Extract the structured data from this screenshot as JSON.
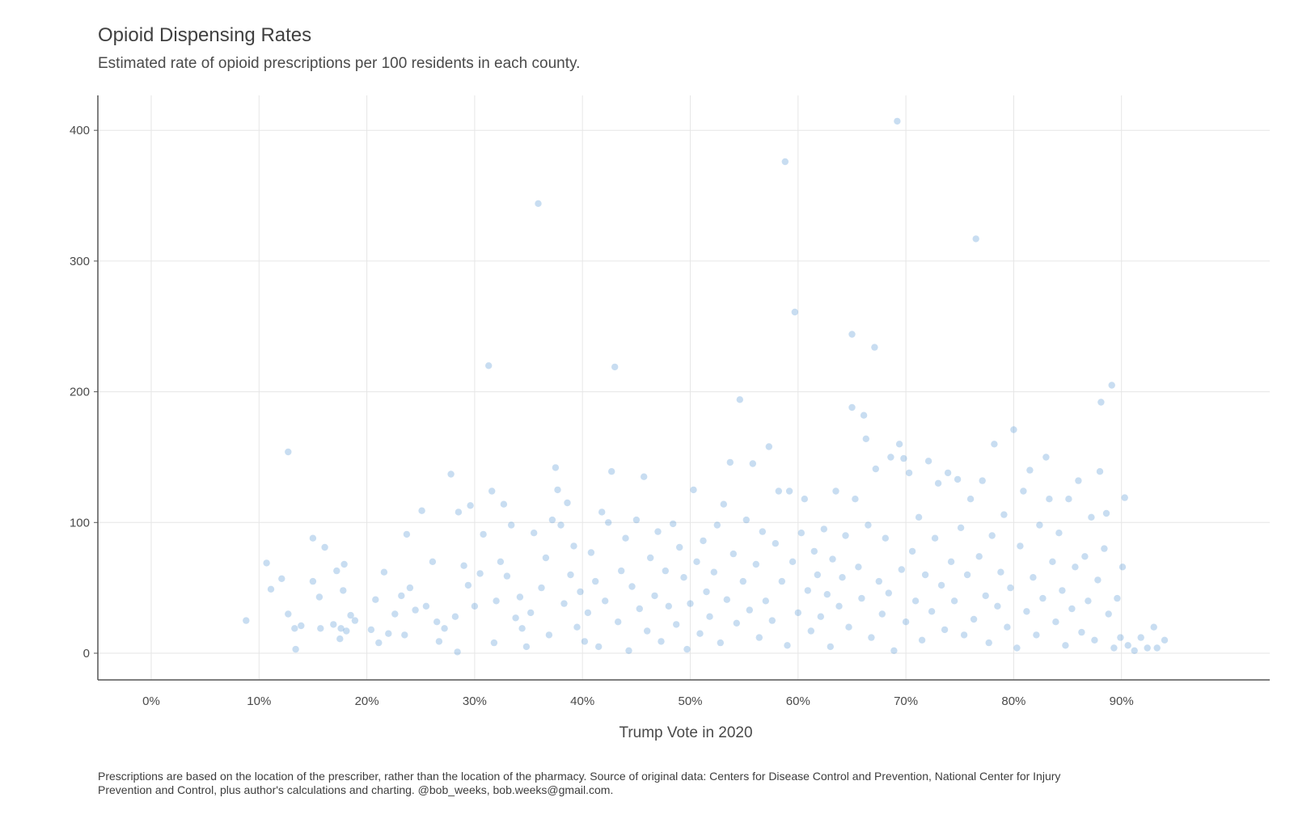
{
  "chart_data": {
    "type": "scatter",
    "title": "Opioid Dispensing Rates",
    "subtitle": "Estimated rate of opioid prescriptions per 100 residents in each county.",
    "xlabel": "Trump Vote in 2020",
    "ylabel": "",
    "caption": "Prescriptions are based on the location of the prescriber, rather than the location of the pharmacy. Source of original data: Centers for Disease Control and Prevention, National Center for Injury Prevention and Control, plus author's calculations and charting. @bob_weeks, bob.weeks@gmail.com.",
    "xlim": [
      -0.05,
      1.04
    ],
    "ylim": [
      -20,
      425
    ],
    "x_ticks": [
      0,
      0.1,
      0.2,
      0.3,
      0.4,
      0.5,
      0.6,
      0.7,
      0.8,
      0.9
    ],
    "x_tick_labels": [
      "0%",
      "10%",
      "20%",
      "30%",
      "40%",
      "50%",
      "60%",
      "70%",
      "80%",
      "90%"
    ],
    "y_ticks": [
      0,
      100,
      200,
      300,
      400
    ],
    "y_tick_labels": [
      "0",
      "100",
      "200",
      "300",
      "400"
    ],
    "grid": true,
    "point_color": "#4a90d0",
    "points": [
      [
        0.088,
        25
      ],
      [
        0.107,
        69
      ],
      [
        0.111,
        49
      ],
      [
        0.121,
        57
      ],
      [
        0.127,
        154
      ],
      [
        0.127,
        30
      ],
      [
        0.133,
        19
      ],
      [
        0.134,
        3
      ],
      [
        0.139,
        21
      ],
      [
        0.15,
        88
      ],
      [
        0.15,
        55
      ],
      [
        0.156,
        43
      ],
      [
        0.157,
        19
      ],
      [
        0.161,
        81
      ],
      [
        0.169,
        22
      ],
      [
        0.172,
        63
      ],
      [
        0.175,
        11
      ],
      [
        0.176,
        19
      ],
      [
        0.178,
        48
      ],
      [
        0.179,
        68
      ],
      [
        0.181,
        17
      ],
      [
        0.185,
        29
      ],
      [
        0.189,
        25
      ],
      [
        0.204,
        18
      ],
      [
        0.208,
        41
      ],
      [
        0.211,
        8
      ],
      [
        0.216,
        62
      ],
      [
        0.22,
        15
      ],
      [
        0.226,
        30
      ],
      [
        0.232,
        44
      ],
      [
        0.235,
        14
      ],
      [
        0.237,
        91
      ],
      [
        0.24,
        50
      ],
      [
        0.245,
        33
      ],
      [
        0.251,
        109
      ],
      [
        0.255,
        36
      ],
      [
        0.261,
        70
      ],
      [
        0.265,
        24
      ],
      [
        0.267,
        9
      ],
      [
        0.272,
        19
      ],
      [
        0.278,
        137
      ],
      [
        0.282,
        28
      ],
      [
        0.284,
        1
      ],
      [
        0.285,
        108
      ],
      [
        0.29,
        67
      ],
      [
        0.294,
        52
      ],
      [
        0.296,
        113
      ],
      [
        0.3,
        36
      ],
      [
        0.305,
        61
      ],
      [
        0.308,
        91
      ],
      [
        0.313,
        220
      ],
      [
        0.316,
        124
      ],
      [
        0.318,
        8
      ],
      [
        0.32,
        40
      ],
      [
        0.324,
        70
      ],
      [
        0.327,
        114
      ],
      [
        0.33,
        59
      ],
      [
        0.334,
        98
      ],
      [
        0.338,
        27
      ],
      [
        0.342,
        43
      ],
      [
        0.344,
        19
      ],
      [
        0.348,
        5
      ],
      [
        0.352,
        31
      ],
      [
        0.355,
        92
      ],
      [
        0.359,
        344
      ],
      [
        0.362,
        50
      ],
      [
        0.366,
        73
      ],
      [
        0.369,
        14
      ],
      [
        0.372,
        102
      ],
      [
        0.375,
        142
      ],
      [
        0.377,
        125
      ],
      [
        0.38,
        98
      ],
      [
        0.383,
        38
      ],
      [
        0.386,
        115
      ],
      [
        0.389,
        60
      ],
      [
        0.392,
        82
      ],
      [
        0.395,
        20
      ],
      [
        0.398,
        47
      ],
      [
        0.402,
        9
      ],
      [
        0.405,
        31
      ],
      [
        0.408,
        77
      ],
      [
        0.412,
        55
      ],
      [
        0.415,
        5
      ],
      [
        0.418,
        108
      ],
      [
        0.421,
        40
      ],
      [
        0.424,
        100
      ],
      [
        0.427,
        139
      ],
      [
        0.43,
        219
      ],
      [
        0.433,
        24
      ],
      [
        0.436,
        63
      ],
      [
        0.44,
        88
      ],
      [
        0.443,
        2
      ],
      [
        0.446,
        51
      ],
      [
        0.45,
        102
      ],
      [
        0.453,
        34
      ],
      [
        0.457,
        135
      ],
      [
        0.46,
        17
      ],
      [
        0.463,
        73
      ],
      [
        0.467,
        44
      ],
      [
        0.47,
        93
      ],
      [
        0.473,
        9
      ],
      [
        0.477,
        63
      ],
      [
        0.48,
        36
      ],
      [
        0.484,
        99
      ],
      [
        0.487,
        22
      ],
      [
        0.49,
        81
      ],
      [
        0.494,
        58
      ],
      [
        0.497,
        3
      ],
      [
        0.5,
        38
      ],
      [
        0.503,
        125
      ],
      [
        0.506,
        70
      ],
      [
        0.509,
        15
      ],
      [
        0.512,
        86
      ],
      [
        0.515,
        47
      ],
      [
        0.518,
        28
      ],
      [
        0.522,
        62
      ],
      [
        0.525,
        98
      ],
      [
        0.528,
        8
      ],
      [
        0.531,
        114
      ],
      [
        0.534,
        41
      ],
      [
        0.537,
        146
      ],
      [
        0.54,
        76
      ],
      [
        0.543,
        23
      ],
      [
        0.546,
        194
      ],
      [
        0.549,
        55
      ],
      [
        0.552,
        102
      ],
      [
        0.555,
        33
      ],
      [
        0.558,
        145
      ],
      [
        0.561,
        68
      ],
      [
        0.564,
        12
      ],
      [
        0.567,
        93
      ],
      [
        0.57,
        40
      ],
      [
        0.573,
        158
      ],
      [
        0.576,
        25
      ],
      [
        0.579,
        84
      ],
      [
        0.582,
        124
      ],
      [
        0.585,
        55
      ],
      [
        0.588,
        376
      ],
      [
        0.59,
        6
      ],
      [
        0.592,
        124
      ],
      [
        0.595,
        70
      ],
      [
        0.597,
        261
      ],
      [
        0.6,
        31
      ],
      [
        0.603,
        92
      ],
      [
        0.606,
        118
      ],
      [
        0.609,
        48
      ],
      [
        0.612,
        17
      ],
      [
        0.615,
        78
      ],
      [
        0.618,
        60
      ],
      [
        0.621,
        28
      ],
      [
        0.624,
        95
      ],
      [
        0.627,
        45
      ],
      [
        0.63,
        5
      ],
      [
        0.632,
        72
      ],
      [
        0.635,
        124
      ],
      [
        0.638,
        36
      ],
      [
        0.641,
        58
      ],
      [
        0.644,
        90
      ],
      [
        0.647,
        20
      ],
      [
        0.65,
        244
      ],
      [
        0.65,
        188
      ],
      [
        0.653,
        118
      ],
      [
        0.656,
        66
      ],
      [
        0.659,
        42
      ],
      [
        0.661,
        182
      ],
      [
        0.663,
        164
      ],
      [
        0.665,
        98
      ],
      [
        0.668,
        12
      ],
      [
        0.671,
        234
      ],
      [
        0.672,
        141
      ],
      [
        0.675,
        55
      ],
      [
        0.678,
        30
      ],
      [
        0.681,
        88
      ],
      [
        0.684,
        46
      ],
      [
        0.686,
        150
      ],
      [
        0.689,
        2
      ],
      [
        0.692,
        407
      ],
      [
        0.694,
        160
      ],
      [
        0.696,
        64
      ],
      [
        0.698,
        149
      ],
      [
        0.7,
        24
      ],
      [
        0.703,
        138
      ],
      [
        0.706,
        78
      ],
      [
        0.709,
        40
      ],
      [
        0.712,
        104
      ],
      [
        0.715,
        10
      ],
      [
        0.718,
        60
      ],
      [
        0.721,
        147
      ],
      [
        0.724,
        32
      ],
      [
        0.727,
        88
      ],
      [
        0.73,
        130
      ],
      [
        0.733,
        52
      ],
      [
        0.736,
        18
      ],
      [
        0.739,
        138
      ],
      [
        0.742,
        70
      ],
      [
        0.745,
        40
      ],
      [
        0.748,
        133
      ],
      [
        0.751,
        96
      ],
      [
        0.754,
        14
      ],
      [
        0.757,
        60
      ],
      [
        0.76,
        118
      ],
      [
        0.763,
        26
      ],
      [
        0.765,
        317
      ],
      [
        0.768,
        74
      ],
      [
        0.771,
        132
      ],
      [
        0.774,
        44
      ],
      [
        0.777,
        8
      ],
      [
        0.78,
        90
      ],
      [
        0.782,
        160
      ],
      [
        0.785,
        36
      ],
      [
        0.788,
        62
      ],
      [
        0.791,
        106
      ],
      [
        0.794,
        20
      ],
      [
        0.797,
        50
      ],
      [
        0.8,
        171
      ],
      [
        0.803,
        4
      ],
      [
        0.806,
        82
      ],
      [
        0.809,
        124
      ],
      [
        0.812,
        32
      ],
      [
        0.815,
        140
      ],
      [
        0.818,
        58
      ],
      [
        0.821,
        14
      ],
      [
        0.824,
        98
      ],
      [
        0.827,
        42
      ],
      [
        0.83,
        150
      ],
      [
        0.833,
        118
      ],
      [
        0.836,
        70
      ],
      [
        0.839,
        24
      ],
      [
        0.842,
        92
      ],
      [
        0.845,
        48
      ],
      [
        0.848,
        6
      ],
      [
        0.851,
        118
      ],
      [
        0.854,
        34
      ],
      [
        0.857,
        66
      ],
      [
        0.86,
        132
      ],
      [
        0.863,
        16
      ],
      [
        0.866,
        74
      ],
      [
        0.869,
        40
      ],
      [
        0.872,
        104
      ],
      [
        0.875,
        10
      ],
      [
        0.878,
        56
      ],
      [
        0.88,
        139
      ],
      [
        0.881,
        192
      ],
      [
        0.884,
        80
      ],
      [
        0.886,
        107
      ],
      [
        0.888,
        30
      ],
      [
        0.891,
        205
      ],
      [
        0.893,
        4
      ],
      [
        0.896,
        42
      ],
      [
        0.899,
        12
      ],
      [
        0.901,
        66
      ],
      [
        0.903,
        119
      ],
      [
        0.906,
        6
      ],
      [
        0.912,
        2
      ],
      [
        0.918,
        12
      ],
      [
        0.924,
        4
      ],
      [
        0.93,
        20
      ],
      [
        0.933,
        4
      ],
      [
        0.94,
        10
      ]
    ]
  }
}
